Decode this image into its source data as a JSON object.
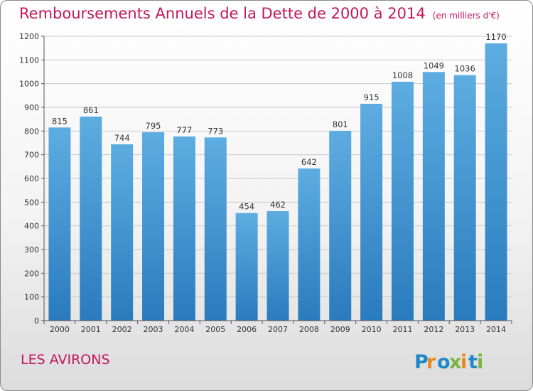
{
  "chart_data": {
    "type": "bar",
    "title": "Remboursements Annuels de la Dette de 2000 à 2014",
    "unit_label": "(en milliers d'€)",
    "categories": [
      "2000",
      "2001",
      "2002",
      "2003",
      "2004",
      "2005",
      "2006",
      "2007",
      "2008",
      "2009",
      "2010",
      "2011",
      "2012",
      "2013",
      "2014"
    ],
    "values": [
      815,
      861,
      744,
      795,
      777,
      773,
      454,
      462,
      642,
      801,
      915,
      1008,
      1049,
      1036,
      1170
    ],
    "ylim": [
      0,
      1200
    ],
    "yticks": [
      0,
      100,
      200,
      300,
      400,
      500,
      600,
      700,
      800,
      900,
      1000,
      1100,
      1200
    ],
    "grid": true,
    "bar_color_top": "#5dade2",
    "bar_color_bottom": "#2a7bbd"
  },
  "footer": {
    "commune": "LES AVIRONS",
    "brand": "Proxiti",
    "brand_letters": [
      "P",
      "r",
      "o",
      "x",
      "i",
      "t",
      "i"
    ],
    "brand_colors": [
      "#1e88c8",
      "#e8891a",
      "#1e88c8",
      "#7cb342",
      "#e8891a",
      "#1e88c8",
      "#7cb342"
    ]
  },
  "colors": {
    "title": "#c2185b",
    "axis": "#555555",
    "grid": "#c8c8c8"
  }
}
